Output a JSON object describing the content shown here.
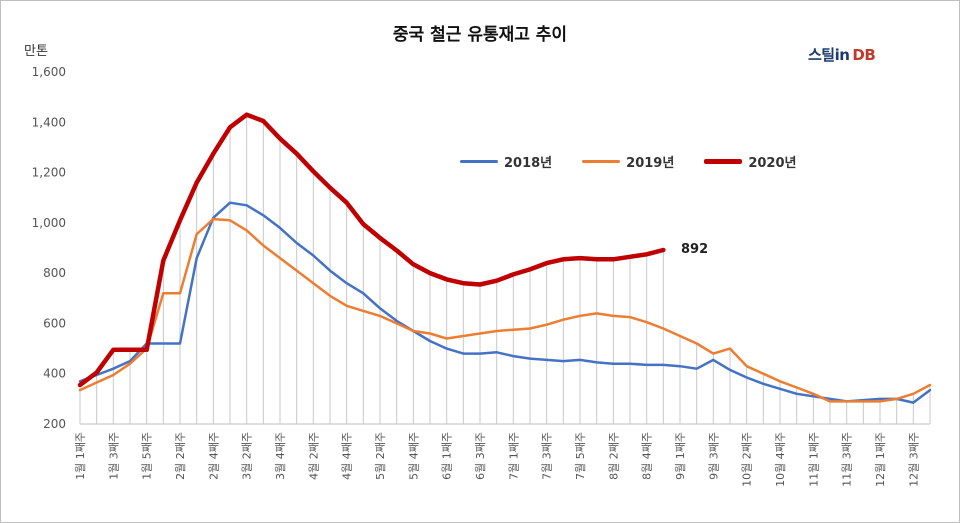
{
  "chart_data": {
    "type": "line",
    "title": "중국 철근 유통재고 추이",
    "ylabel": "만톤",
    "ylim": [
      200,
      1600
    ],
    "yticks": [
      "200",
      "400",
      "600",
      "800",
      "1,000",
      "1,200",
      "1,400",
      "1,600"
    ],
    "x_tick_labels": [
      "1월 1째주",
      "1월 3째주",
      "1월 5째주",
      "2월 2째주",
      "2월 4째주",
      "3월 2째주",
      "3월 4째주",
      "4월 2째주",
      "4월 4째주",
      "5월 2째주",
      "5월 4째주",
      "6월 1째주",
      "6월 3째주",
      "7월 1째주",
      "7월 3째주",
      "7월 5째주",
      "8월 2째주",
      "8월 4째주",
      "9월 1째주",
      "9월 3째주",
      "10월 2째주",
      "10월 4째주",
      "11월 1째주",
      "11월 3째주",
      "12월 1째주",
      "12월 3째주"
    ],
    "n_weeks": 52,
    "grid": "vertical drop lines",
    "series": [
      {
        "name": "2018년",
        "color": "#4472C4",
        "values": [
          370,
          395,
          420,
          450,
          520,
          520,
          520,
          860,
          1020,
          1080,
          1070,
          1030,
          980,
          920,
          870,
          810,
          760,
          720,
          660,
          610,
          570,
          530,
          500,
          480,
          480,
          485,
          470,
          460,
          455,
          450,
          455,
          445,
          440,
          440,
          435,
          435,
          430,
          420,
          455,
          415,
          385,
          360,
          340,
          320,
          310,
          300,
          290,
          295,
          300,
          300,
          285,
          335
        ]
      },
      {
        "name": "2019년",
        "color": "#ED7D31",
        "values": [
          335,
          365,
          395,
          440,
          500,
          720,
          720,
          955,
          1015,
          1010,
          970,
          910,
          860,
          810,
          760,
          710,
          670,
          650,
          630,
          600,
          570,
          560,
          540,
          550,
          560,
          570,
          575,
          580,
          595,
          615,
          630,
          640,
          630,
          625,
          605,
          580,
          550,
          520,
          480,
          500,
          430,
          400,
          370,
          345,
          320,
          290,
          290,
          290,
          290,
          300,
          320,
          355
        ]
      },
      {
        "name": "2020년",
        "color": "#C00000",
        "values": [
          355,
          405,
          495,
          495,
          495,
          850,
          1010,
          1160,
          1275,
          1380,
          1430,
          1405,
          1335,
          1275,
          1205,
          1140,
          1080,
          995,
          940,
          890,
          835,
          800,
          775,
          760,
          755,
          770,
          795,
          815,
          840,
          855,
          860,
          855,
          855,
          865,
          875,
          892
        ]
      }
    ],
    "annotation": "892",
    "legend_position": "center-right"
  },
  "brand": {
    "text": "스틸in",
    "suffix": "DB"
  }
}
